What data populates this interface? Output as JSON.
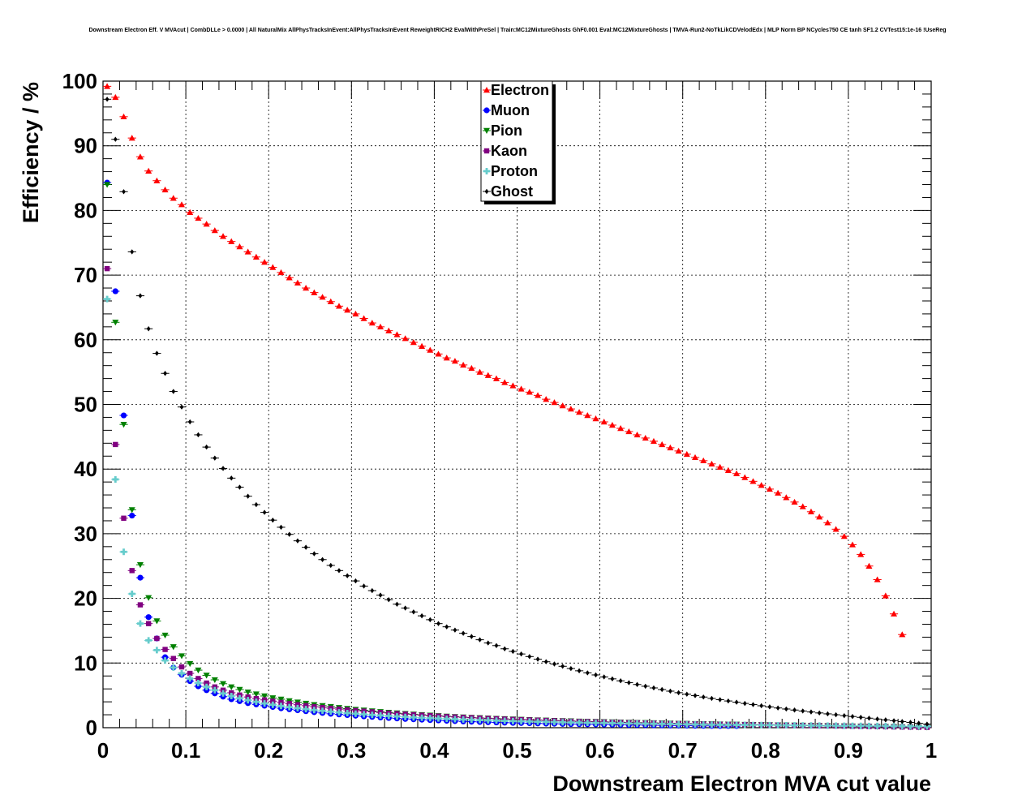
{
  "title": "Downstream Electron Eff. V MVAcut | CombDLLe > 0.0000 | All NaturalMix AllPhysTracksInEvent:AllPhysTracksInEvent ReweightRICH2 EvalWithPreSel | Train:MC12MixtureGhosts GhF0.001 Eval:MC12MixtureGhosts | TMVA-Run2-NoTkLikCDVelodEdx | MLP Norm BP NCycles750 CE tanh SF1.2 CVTest15:1e-16 !UseReg",
  "chart_data": {
    "type": "scatter",
    "title": "Downstream Electron Eff. V MVAcut | CombDLLe > 0.0000 | All NaturalMix AllPhysTracksInEvent:AllPhysTracksInEvent ReweightRICH2 EvalWithPreSel | Train:MC12MixtureGhosts GhF0.001 Eval:MC12MixtureGhosts | TMVA-Run2-NoTkLikCDVelodEdx | MLP Norm BP NCycles750 CE tanh SF1.2 CVTest15:1e-16 !UseReg",
    "xlabel": "Downstream Electron MVA cut value",
    "ylabel": "Efficiency / %",
    "xlim": [
      0,
      1
    ],
    "ylim": [
      0,
      100
    ],
    "grid": true,
    "legend_position": "top-center",
    "x_ticks": [
      "0",
      "0.1",
      "0.2",
      "0.3",
      "0.4",
      "0.5",
      "0.6",
      "0.7",
      "0.8",
      "0.9",
      "1"
    ],
    "y_ticks": [
      "0",
      "10",
      "20",
      "30",
      "40",
      "50",
      "60",
      "70",
      "80",
      "90",
      "100"
    ],
    "x": [
      0.005,
      0.015,
      0.025,
      0.035,
      0.045,
      0.055,
      0.065,
      0.075,
      0.085,
      0.095,
      0.105,
      0.115,
      0.125,
      0.135,
      0.145,
      0.155,
      0.165,
      0.175,
      0.185,
      0.195,
      0.205,
      0.215,
      0.225,
      0.235,
      0.245,
      0.255,
      0.265,
      0.275,
      0.285,
      0.295,
      0.305,
      0.315,
      0.325,
      0.335,
      0.345,
      0.355,
      0.365,
      0.375,
      0.385,
      0.395,
      0.405,
      0.415,
      0.425,
      0.435,
      0.445,
      0.455,
      0.465,
      0.475,
      0.485,
      0.495,
      0.505,
      0.515,
      0.525,
      0.535,
      0.545,
      0.555,
      0.565,
      0.575,
      0.585,
      0.595,
      0.605,
      0.615,
      0.625,
      0.635,
      0.645,
      0.655,
      0.665,
      0.675,
      0.685,
      0.695,
      0.705,
      0.715,
      0.725,
      0.735,
      0.745,
      0.755,
      0.765,
      0.775,
      0.785,
      0.795,
      0.805,
      0.815,
      0.825,
      0.835,
      0.845,
      0.855,
      0.865,
      0.875,
      0.885,
      0.895,
      0.905,
      0.915,
      0.925,
      0.935,
      0.945,
      0.955,
      0.965,
      0.975,
      0.985,
      0.995
    ],
    "series": [
      {
        "name": "Electron",
        "color": "#ff0000",
        "marker": "triangle-up",
        "values": [
          99.2,
          97.5,
          94.5,
          91.2,
          88.3,
          86.1,
          84.6,
          83.2,
          81.9,
          80.9,
          79.7,
          78.8,
          77.9,
          76.9,
          76.0,
          75.2,
          74.4,
          73.6,
          72.8,
          72.0,
          71.2,
          70.4,
          69.6,
          68.8,
          68.0,
          67.3,
          66.6,
          65.9,
          65.2,
          64.6,
          64.0,
          63.3,
          62.6,
          62.0,
          61.4,
          60.8,
          60.2,
          59.6,
          59.0,
          58.4,
          57.8,
          57.2,
          56.7,
          56.1,
          55.6,
          55.0,
          54.5,
          54.0,
          53.4,
          52.9,
          52.4,
          51.9,
          51.4,
          50.8,
          50.3,
          49.8,
          49.3,
          48.8,
          48.3,
          47.8,
          47.3,
          46.8,
          46.3,
          45.8,
          45.3,
          44.8,
          44.3,
          43.8,
          43.3,
          42.8,
          42.3,
          41.8,
          41.3,
          40.8,
          40.3,
          39.8,
          39.3,
          38.7,
          38.1,
          37.5,
          36.9,
          36.3,
          35.6,
          34.9,
          34.2,
          33.4,
          32.6,
          31.7,
          30.7,
          29.6,
          28.3,
          26.8,
          25.0,
          22.9,
          20.4,
          17.6,
          14.4,
          null,
          null,
          null
        ]
      },
      {
        "name": "Muon",
        "color": "#0000ff",
        "marker": "circle",
        "values": [
          84.3,
          67.5,
          48.3,
          32.8,
          23.2,
          17.1,
          13.8,
          10.9,
          9.3,
          8.2,
          7.2,
          6.4,
          5.8,
          5.3,
          4.8,
          4.4,
          4.1,
          3.8,
          3.6,
          3.4,
          3.2,
          3.0,
          2.85,
          2.7,
          2.55,
          2.4,
          2.28,
          2.15,
          2.05,
          1.95,
          1.85,
          1.75,
          1.67,
          1.58,
          1.5,
          1.43,
          1.36,
          1.3,
          1.24,
          1.18,
          1.12,
          1.07,
          1.02,
          0.97,
          0.93,
          0.89,
          0.85,
          0.81,
          0.78,
          0.75,
          0.72,
          0.69,
          0.66,
          0.63,
          0.61,
          0.58,
          0.56,
          0.54,
          0.52,
          0.5,
          0.48,
          0.46,
          0.44,
          0.42,
          0.41,
          0.39,
          0.37,
          0.36,
          0.34,
          0.33,
          0.32,
          0.3,
          0.29,
          0.28,
          0.27,
          0.26,
          0.25,
          null,
          null,
          null,
          null,
          null,
          null,
          null,
          null,
          null,
          null,
          null,
          null,
          null,
          null,
          null,
          null,
          null,
          null,
          null,
          null,
          null,
          null,
          null
        ]
      },
      {
        "name": "Pion",
        "color": "#008000",
        "marker": "triangle-down",
        "values": [
          84.0,
          62.7,
          46.9,
          33.7,
          25.2,
          20.1,
          16.5,
          14.3,
          12.5,
          11.1,
          9.9,
          8.9,
          8.1,
          7.4,
          6.8,
          6.3,
          5.9,
          5.5,
          5.2,
          4.9,
          4.6,
          4.4,
          4.15,
          3.95,
          3.75,
          3.55,
          3.4,
          3.25,
          3.1,
          2.95,
          2.82,
          2.7,
          2.58,
          2.47,
          2.36,
          2.26,
          2.17,
          2.08,
          2.0,
          1.92,
          1.84,
          1.77,
          1.7,
          1.64,
          1.58,
          1.52,
          1.47,
          1.42,
          1.37,
          1.32,
          1.28,
          1.23,
          1.19,
          1.15,
          1.11,
          1.07,
          1.04,
          1.0,
          0.97,
          0.94,
          0.91,
          0.88,
          0.85,
          0.82,
          0.79,
          0.77,
          0.74,
          0.72,
          0.69,
          0.67,
          0.65,
          0.62,
          0.6,
          0.58,
          0.56,
          0.54,
          0.52,
          0.5,
          0.48,
          0.46,
          0.44,
          0.42,
          0.4,
          0.38,
          0.36,
          0.34,
          0.32,
          0.3,
          0.28,
          0.26,
          0.24,
          0.22,
          0.2,
          0.18,
          0.16,
          0.14,
          0.12,
          0.1,
          0.08,
          0.06
        ]
      },
      {
        "name": "Kaon",
        "color": "#800080",
        "marker": "square",
        "values": [
          71.0,
          43.8,
          32.4,
          24.3,
          19.0,
          16.1,
          13.8,
          12.1,
          10.7,
          9.4,
          8.4,
          7.6,
          6.9,
          6.3,
          5.8,
          5.4,
          5.05,
          4.75,
          4.5,
          4.3,
          4.1,
          3.9,
          3.72,
          3.55,
          3.4,
          3.25,
          3.12,
          3.0,
          2.88,
          2.76,
          2.65,
          2.55,
          2.45,
          2.35,
          2.26,
          2.17,
          2.09,
          2.01,
          1.93,
          1.86,
          1.79,
          1.72,
          1.66,
          1.6,
          1.54,
          1.48,
          1.43,
          1.38,
          1.33,
          1.28,
          1.24,
          1.2,
          1.16,
          1.12,
          1.08,
          1.04,
          1.0,
          0.97,
          0.94,
          0.91,
          0.88,
          0.85,
          0.82,
          0.79,
          0.76,
          0.74,
          0.71,
          0.69,
          0.66,
          0.64,
          0.62,
          0.6,
          0.58,
          0.56,
          0.54,
          0.52,
          0.5,
          0.48,
          0.46,
          0.44,
          0.42,
          0.4,
          0.38,
          0.36,
          0.34,
          0.32,
          0.3,
          0.28,
          0.26,
          0.24,
          0.22,
          0.2,
          0.18,
          0.16,
          0.14,
          0.12,
          0.1,
          0.08,
          0.06,
          0.04
        ]
      },
      {
        "name": "Proton",
        "color": "#66cccc",
        "marker": "cross",
        "values": [
          66.3,
          38.4,
          27.2,
          20.7,
          16.1,
          13.5,
          12.0,
          10.4,
          9.3,
          8.4,
          7.6,
          6.9,
          6.3,
          5.8,
          5.3,
          4.9,
          4.55,
          4.25,
          4.0,
          3.75,
          3.55,
          3.35,
          3.18,
          3.02,
          2.87,
          2.73,
          2.6,
          2.48,
          2.37,
          2.26,
          2.16,
          2.07,
          1.98,
          1.9,
          1.82,
          1.74,
          1.67,
          1.6,
          1.54,
          1.48,
          1.42,
          1.37,
          1.32,
          1.27,
          1.22,
          1.18,
          1.14,
          1.1,
          1.06,
          1.02,
          0.99,
          0.96,
          0.93,
          0.9,
          0.87,
          0.84,
          0.81,
          0.79,
          0.76,
          0.74,
          0.72,
          0.7,
          0.68,
          0.66,
          0.64,
          0.62,
          0.6,
          0.58,
          0.56,
          0.54,
          0.52,
          0.5,
          0.48,
          0.46,
          0.45,
          0.44,
          0.43,
          0.42,
          0.41,
          0.4,
          0.39,
          0.38,
          0.37,
          0.36,
          0.35,
          0.34,
          0.33,
          0.32,
          0.31,
          0.3,
          0.29,
          0.28,
          0.27,
          0.26,
          0.25,
          0.24,
          0.23,
          0.22,
          0.21,
          0.2
        ]
      },
      {
        "name": "Ghost",
        "color": "#000000",
        "marker": "diamond",
        "values": [
          97.2,
          91.0,
          82.9,
          73.6,
          66.8,
          61.7,
          57.9,
          54.8,
          52.0,
          49.6,
          47.3,
          45.3,
          43.4,
          41.7,
          40.1,
          38.6,
          37.2,
          35.8,
          34.5,
          33.3,
          32.1,
          31.0,
          29.9,
          28.9,
          27.9,
          26.9,
          26.0,
          25.1,
          24.3,
          23.5,
          22.7,
          21.9,
          21.2,
          20.5,
          19.8,
          19.1,
          18.5,
          17.9,
          17.3,
          16.7,
          16.1,
          15.6,
          15.1,
          14.6,
          14.1,
          13.6,
          13.1,
          12.7,
          12.2,
          11.8,
          11.4,
          11.0,
          10.6,
          10.2,
          9.85,
          9.5,
          9.15,
          8.8,
          8.48,
          8.16,
          7.85,
          7.55,
          7.25,
          6.96,
          6.68,
          6.41,
          6.15,
          5.9,
          5.65,
          5.41,
          5.18,
          4.96,
          4.74,
          4.53,
          4.33,
          4.13,
          3.94,
          3.75,
          3.57,
          3.39,
          3.22,
          3.05,
          2.89,
          2.73,
          2.58,
          2.43,
          2.28,
          2.14,
          2.0,
          1.86,
          1.73,
          1.6,
          1.47,
          1.34,
          1.21,
          1.08,
          0.95,
          0.82,
          0.69,
          0.56
        ]
      }
    ]
  }
}
